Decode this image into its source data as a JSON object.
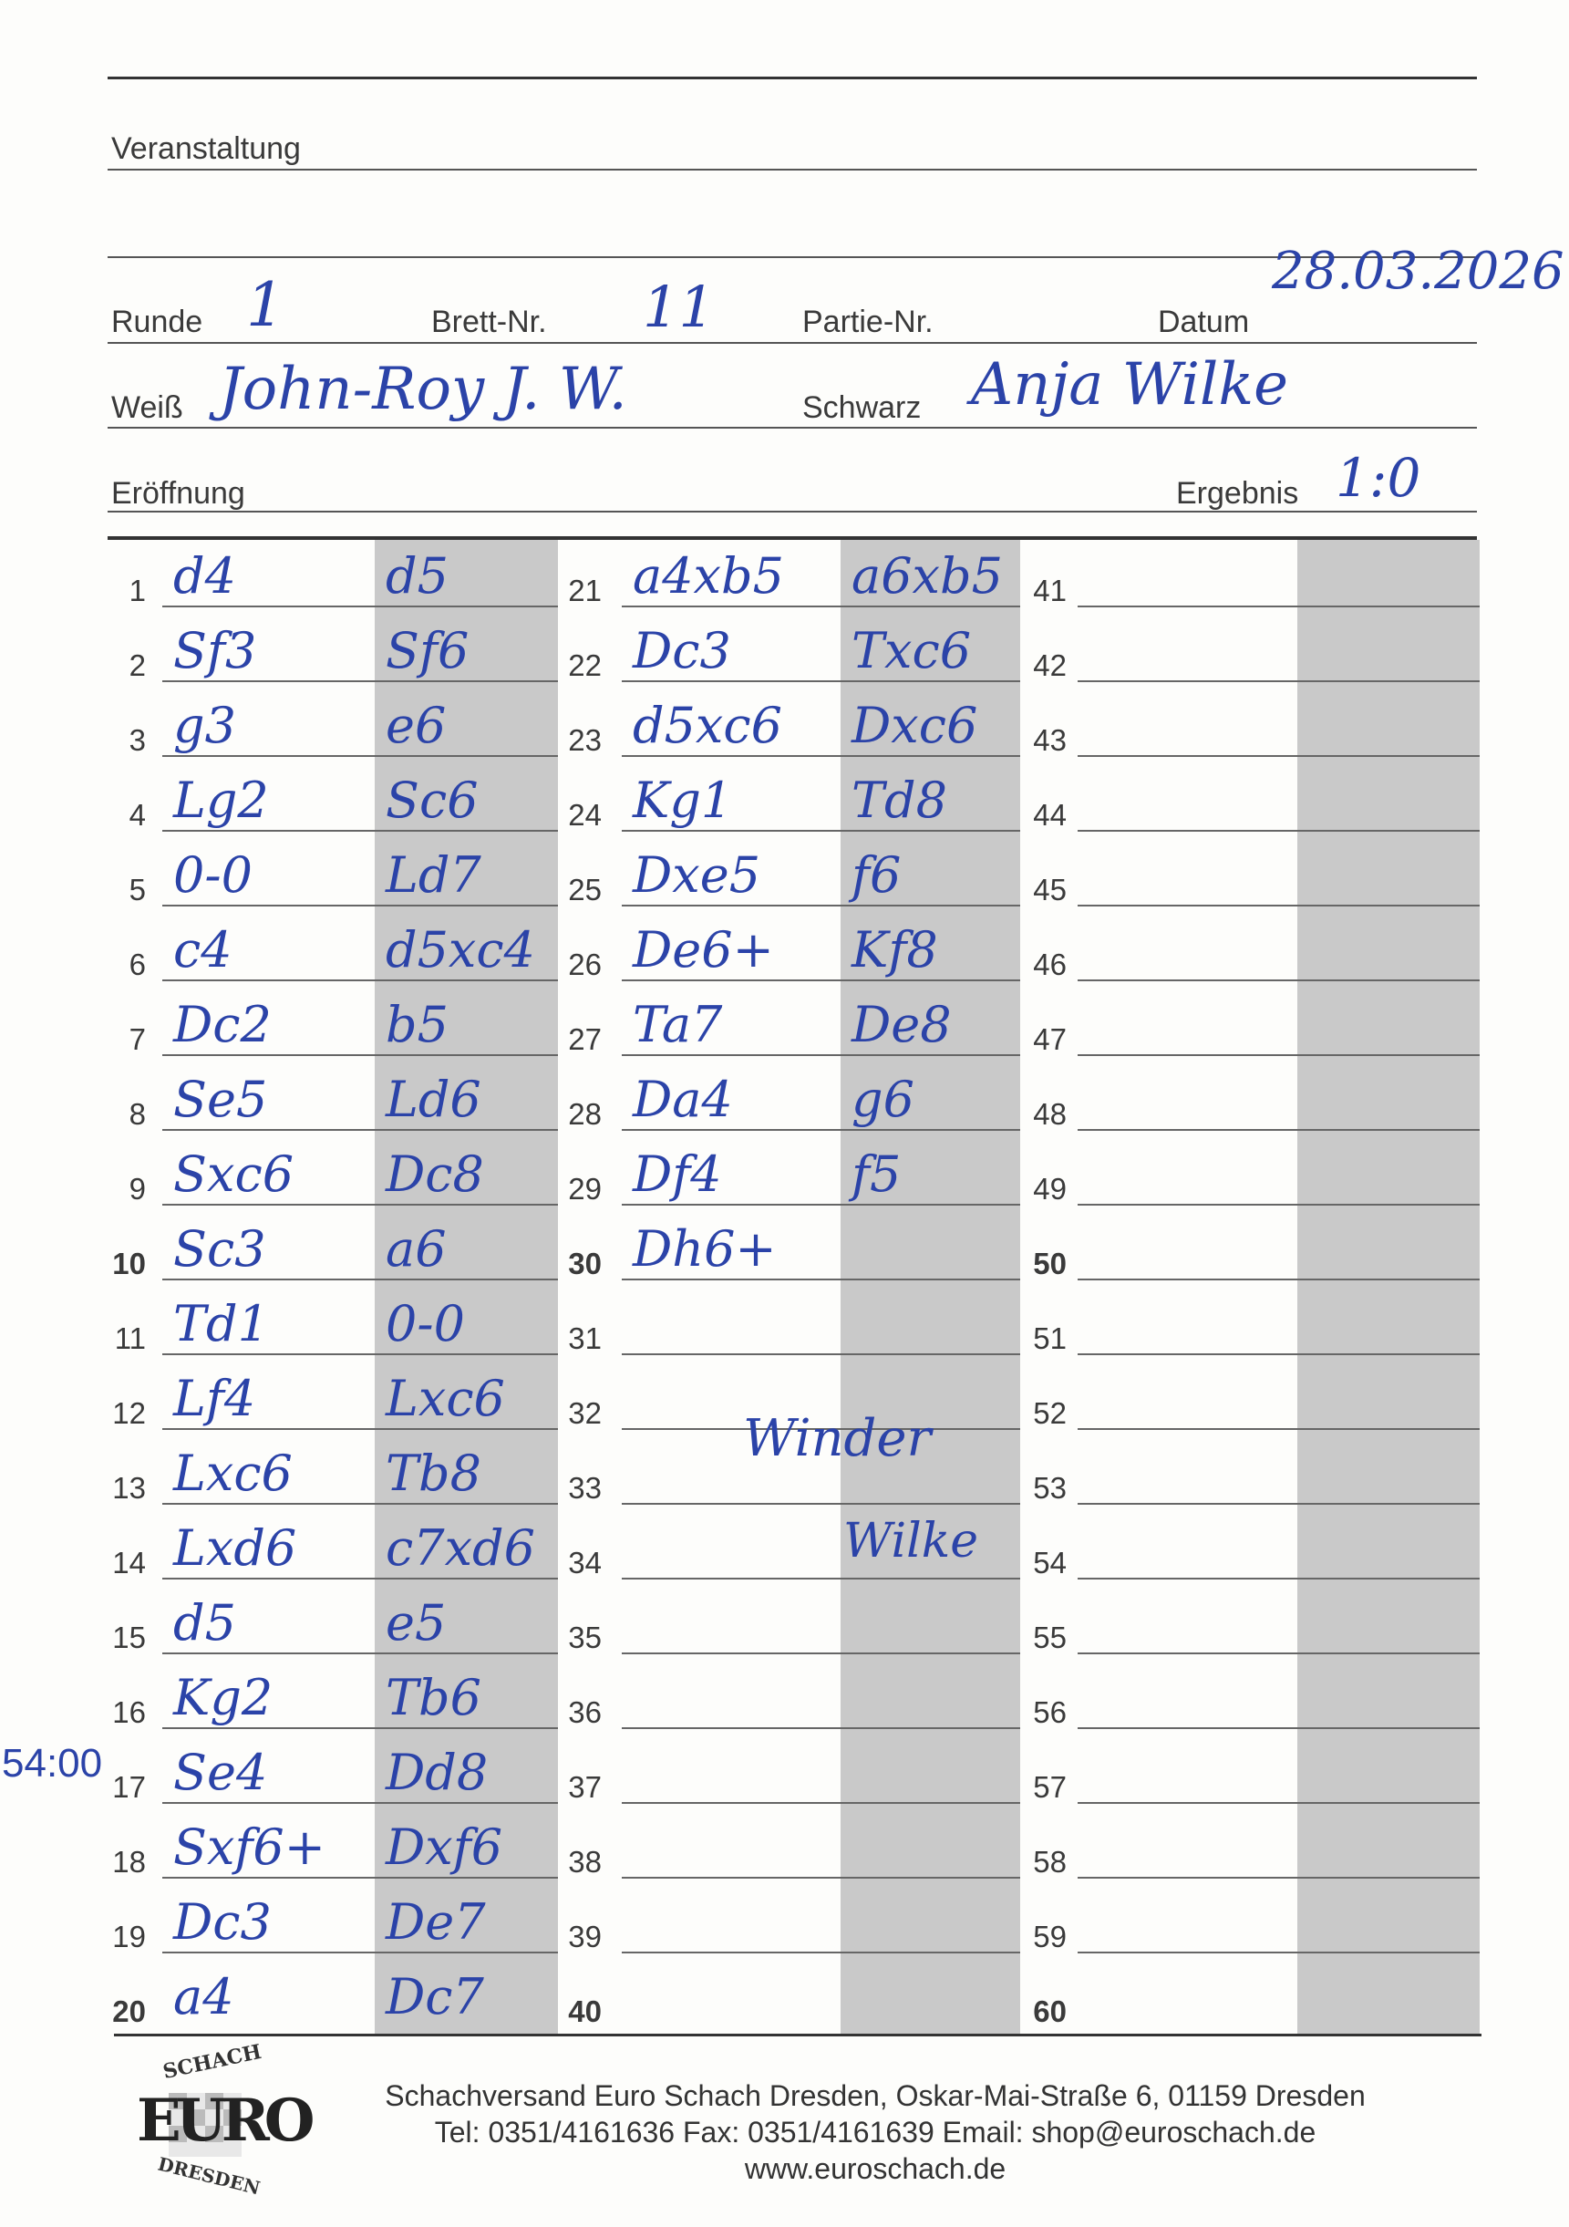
{
  "header": {
    "event_label": "Veranstaltung",
    "round_label": "Runde",
    "round_value": "1",
    "board_label": "Brett-Nr.",
    "board_value": "11",
    "game_label": "Partie-Nr.",
    "date_label": "Datum",
    "date_value": "28.03.2026",
    "white_label": "Weiß",
    "white_value": "John-Roy J. W.",
    "black_label": "Schwarz",
    "black_value": "Anja Wilke",
    "opening_label": "Eröffnung",
    "result_label": "Ergebnis",
    "result_value": "1:0"
  },
  "moves": [
    {
      "n": "1",
      "w": "d4",
      "b": "d5"
    },
    {
      "n": "2",
      "w": "Sf3",
      "b": "Sf6"
    },
    {
      "n": "3",
      "w": "g3",
      "b": "e6"
    },
    {
      "n": "4",
      "w": "Lg2",
      "b": "Sc6"
    },
    {
      "n": "5",
      "w": "0-0",
      "b": "Ld7"
    },
    {
      "n": "6",
      "w": "c4",
      "b": "d5xc4"
    },
    {
      "n": "7",
      "w": "Dc2",
      "b": "b5"
    },
    {
      "n": "8",
      "w": "Se5",
      "b": "Ld6"
    },
    {
      "n": "9",
      "w": "Sxc6",
      "b": "Dc8"
    },
    {
      "n": "10",
      "w": "Sc3",
      "b": "a6"
    },
    {
      "n": "11",
      "w": "Td1",
      "b": "0-0"
    },
    {
      "n": "12",
      "w": "Lf4",
      "b": "Lxc6"
    },
    {
      "n": "13",
      "w": "Lxc6",
      "b": "Tb8"
    },
    {
      "n": "14",
      "w": "Lxd6",
      "b": "c7xd6"
    },
    {
      "n": "15",
      "w": "d5",
      "b": "e5"
    },
    {
      "n": "16",
      "w": "Kg2",
      "b": "Tb6"
    },
    {
      "n": "17",
      "w": "Se4",
      "b": "Dd8"
    },
    {
      "n": "18",
      "w": "Sxf6+",
      "b": "Dxf6"
    },
    {
      "n": "19",
      "w": "Dc3",
      "b": "De7"
    },
    {
      "n": "20",
      "w": "a4",
      "b": "Dc7"
    },
    {
      "n": "21",
      "w": "a4xb5",
      "b": "a6xb5"
    },
    {
      "n": "22",
      "w": "Dc3",
      "b": "Txc6"
    },
    {
      "n": "23",
      "w": "d5xc6",
      "b": "Dxc6"
    },
    {
      "n": "24",
      "w": "Kg1",
      "b": "Td8"
    },
    {
      "n": "25",
      "w": "Dxe5",
      "b": "f6"
    },
    {
      "n": "26",
      "w": "De6+",
      "b": "Kf8"
    },
    {
      "n": "27",
      "w": "Ta7",
      "b": "De8"
    },
    {
      "n": "28",
      "w": "Da4",
      "b": "g6"
    },
    {
      "n": "29",
      "w": "Df4",
      "b": "f5"
    },
    {
      "n": "30",
      "w": "Dh6+",
      "b": ""
    },
    {
      "n": "31",
      "w": "",
      "b": ""
    },
    {
      "n": "32",
      "w": "",
      "b": ""
    },
    {
      "n": "33",
      "w": "",
      "b": ""
    },
    {
      "n": "34",
      "w": "",
      "b": ""
    },
    {
      "n": "35",
      "w": "",
      "b": ""
    },
    {
      "n": "36",
      "w": "",
      "b": ""
    },
    {
      "n": "37",
      "w": "",
      "b": ""
    },
    {
      "n": "38",
      "w": "",
      "b": ""
    },
    {
      "n": "39",
      "w": "",
      "b": ""
    },
    {
      "n": "40",
      "w": "",
      "b": ""
    },
    {
      "n": "41",
      "w": "",
      "b": ""
    },
    {
      "n": "42",
      "w": "",
      "b": ""
    },
    {
      "n": "43",
      "w": "",
      "b": ""
    },
    {
      "n": "44",
      "w": "",
      "b": ""
    },
    {
      "n": "45",
      "w": "",
      "b": ""
    },
    {
      "n": "46",
      "w": "",
      "b": ""
    },
    {
      "n": "47",
      "w": "",
      "b": ""
    },
    {
      "n": "48",
      "w": "",
      "b": ""
    },
    {
      "n": "49",
      "w": "",
      "b": ""
    },
    {
      "n": "50",
      "w": "",
      "b": ""
    },
    {
      "n": "51",
      "w": "",
      "b": ""
    },
    {
      "n": "52",
      "w": "",
      "b": ""
    },
    {
      "n": "53",
      "w": "",
      "b": ""
    },
    {
      "n": "54",
      "w": "",
      "b": ""
    },
    {
      "n": "55",
      "w": "",
      "b": ""
    },
    {
      "n": "56",
      "w": "",
      "b": ""
    },
    {
      "n": "57",
      "w": "",
      "b": ""
    },
    {
      "n": "58",
      "w": "",
      "b": ""
    },
    {
      "n": "59",
      "w": "",
      "b": ""
    },
    {
      "n": "60",
      "w": "",
      "b": ""
    }
  ],
  "annotations": {
    "time_note": "54:00",
    "signature_white": "Winder",
    "signature_black": "Wilke"
  },
  "footer": {
    "logo_top": "SCHACH",
    "logo_main": "EURO",
    "logo_bottom": "DRESDEN",
    "address": "Schachversand Euro Schach Dresden, Oskar-Mai-Straße 6, 01159 Dresden",
    "contact": "Tel: 0351/4161636 Fax: 0351/4161639 Email: shop@euroschach.de",
    "website": "www.euroschach.de"
  },
  "colors": {
    "ink": "#2b43a8",
    "shade": "#c9c9c9"
  }
}
